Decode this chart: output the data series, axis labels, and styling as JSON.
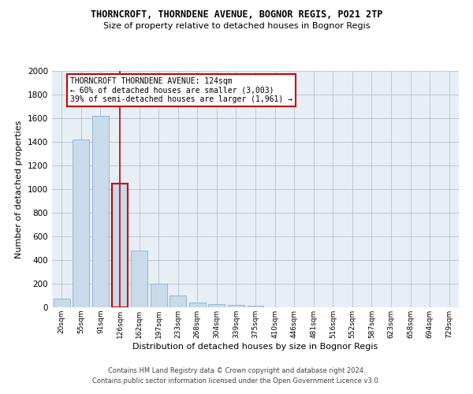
{
  "title_line1": "THORNCROFT, THORNDENE AVENUE, BOGNOR REGIS, PO21 2TP",
  "title_line2": "Size of property relative to detached houses in Bognor Regis",
  "xlabel": "Distribution of detached houses by size in Bognor Regis",
  "ylabel": "Number of detached properties",
  "categories": [
    "20sqm",
    "55sqm",
    "91sqm",
    "126sqm",
    "162sqm",
    "197sqm",
    "233sqm",
    "268sqm",
    "304sqm",
    "339sqm",
    "375sqm",
    "410sqm",
    "446sqm",
    "481sqm",
    "516sqm",
    "552sqm",
    "587sqm",
    "623sqm",
    "658sqm",
    "694sqm",
    "729sqm"
  ],
  "values": [
    75,
    1420,
    1620,
    1050,
    480,
    200,
    100,
    40,
    25,
    20,
    15,
    0,
    0,
    0,
    0,
    0,
    0,
    0,
    0,
    0,
    0
  ],
  "bar_color": "#c9daea",
  "bar_edge_color": "#8ab0cc",
  "highlight_bar_index": 3,
  "highlight_bar_edge_color": "#cc0000",
  "highlight_line_color": "#cc0000",
  "ylim": [
    0,
    2000
  ],
  "yticks": [
    0,
    200,
    400,
    600,
    800,
    1000,
    1200,
    1400,
    1600,
    1800,
    2000
  ],
  "annotation_text": "THORNCROFT THORNDENE AVENUE: 124sqm\n← 60% of detached houses are smaller (3,003)\n39% of semi-detached houses are larger (1,961) →",
  "annotation_box_color": "#ffffff",
  "annotation_box_edge": "#cc0000",
  "footer_line1": "Contains HM Land Registry data © Crown copyright and database right 2024.",
  "footer_line2": "Contains public sector information licensed under the Open Government Licence v3.0.",
  "bg_color": "#ffffff",
  "axes_bg_color": "#e8eef5",
  "grid_color": "#b0b8c8"
}
